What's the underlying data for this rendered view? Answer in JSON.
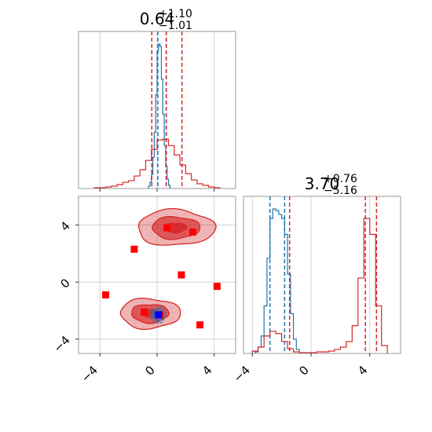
{
  "chart_data": [
    {
      "type": "histogram",
      "panel": "top-left",
      "title": {
        "median": "0.64",
        "plus": "+1.10",
        "minus": "−1.01"
      },
      "xlim": [
        -5.5,
        5.5
      ],
      "grid": true,
      "bin_edges": [
        -4.4,
        -4.0,
        -3.6,
        -3.2,
        -2.8,
        -2.4,
        -2.0,
        -1.6,
        -1.2,
        -0.8,
        -0.4,
        0.0,
        0.4,
        0.8,
        1.2,
        1.6,
        2.0,
        2.4,
        2.8,
        3.2,
        3.6,
        4.0,
        4.4,
        4.8
      ],
      "series": [
        {
          "color": "#1f77b4",
          "bin_edges": [
            -0.6,
            -0.5,
            -0.4,
            -0.3,
            -0.2,
            -0.1,
            0.0,
            0.1,
            0.2,
            0.3,
            0.4,
            0.5,
            0.6,
            0.7,
            0.8,
            0.9
          ],
          "counts": [
            3,
            8,
            18,
            40,
            72,
            120,
            176,
            185,
            182,
            140,
            95,
            55,
            28,
            12,
            4
          ],
          "quantile_lines": [
            0.05,
            0.64
          ]
        },
        {
          "color": "#d62728",
          "counts": [
            1,
            1,
            2,
            3,
            5,
            8,
            10,
            16,
            24,
            36,
            50,
            62,
            63,
            55,
            43,
            30,
            19,
            11,
            6,
            4,
            2,
            1
          ],
          "quantile_lines": [
            -0.37,
            0.64,
            1.74
          ]
        }
      ]
    },
    {
      "type": "contour",
      "panel": "bottom-left",
      "xlim": [
        -5.5,
        5.5
      ],
      "ylim": [
        -5,
        6
      ],
      "xticks": [
        "−4",
        "0",
        "4"
      ],
      "yticks": [
        "−4",
        "0",
        "4"
      ],
      "grid": true,
      "series": [
        {
          "color": "#d62728",
          "modes": [
            {
              "x": 1.3,
              "y": 3.8,
              "sx": 2.7,
              "sy": 1.25
            },
            {
              "x": -0.5,
              "y": -2.2,
              "sx": 2.1,
              "sy": 1.05
            }
          ]
        },
        {
          "color": "#1f77b4",
          "modes": [
            {
              "x": 0.05,
              "y": -2.3,
              "sx": 0.55,
              "sy": 0.55
            }
          ]
        }
      ],
      "red_squares": [
        [
          0.7,
          3.8
        ],
        [
          2.5,
          3.5
        ],
        [
          -1.6,
          2.3
        ],
        [
          1.7,
          0.5
        ],
        [
          4.2,
          -0.3
        ],
        [
          -3.6,
          -0.9
        ],
        [
          -0.9,
          -2.1
        ],
        [
          3.0,
          -3.0
        ],
        [
          0.2,
          -2.3
        ]
      ],
      "blue_square": [
        0.1,
        -2.3
      ]
    },
    {
      "type": "histogram",
      "panel": "bottom-right",
      "title": {
        "median": "3.70",
        "plus": "+0.76",
        "minus": "−5.16"
      },
      "xlim": [
        -4.6,
        6.1
      ],
      "xticks": [
        "−4",
        "0",
        "4"
      ],
      "grid": true,
      "series": [
        {
          "color": "#1f77b4",
          "bin_edges": [
            -3.8,
            -3.6,
            -3.4,
            -3.2,
            -3.0,
            -2.8,
            -2.6,
            -2.4,
            -2.2,
            -2.0,
            -1.8,
            -1.6,
            -1.4,
            -1.2,
            -1.0,
            -0.8
          ],
          "counts": [
            2,
            8,
            22,
            60,
            120,
            170,
            182,
            180,
            175,
            170,
            150,
            100,
            50,
            18,
            5
          ],
          "quantile_lines": [
            -2.8,
            -1.8
          ]
        },
        {
          "color": "#d62728",
          "bin_edges": [
            -4.0,
            -3.6,
            -3.2,
            -2.8,
            -2.4,
            -2.0,
            -1.6,
            -1.2,
            -0.8,
            -0.4,
            0.0,
            0.4,
            0.8,
            1.2,
            1.6,
            2.0,
            2.4,
            2.8,
            3.2,
            3.6,
            4.0,
            4.4,
            4.8,
            5.2
          ],
          "counts": [
            3,
            8,
            22,
            28,
            25,
            15,
            6,
            2,
            1,
            1,
            1,
            2,
            2,
            3,
            5,
            8,
            15,
            35,
            95,
            170,
            150,
            60,
            10
          ],
          "quantile_lines": [
            -1.46,
            3.7,
            4.46
          ]
        }
      ]
    }
  ]
}
